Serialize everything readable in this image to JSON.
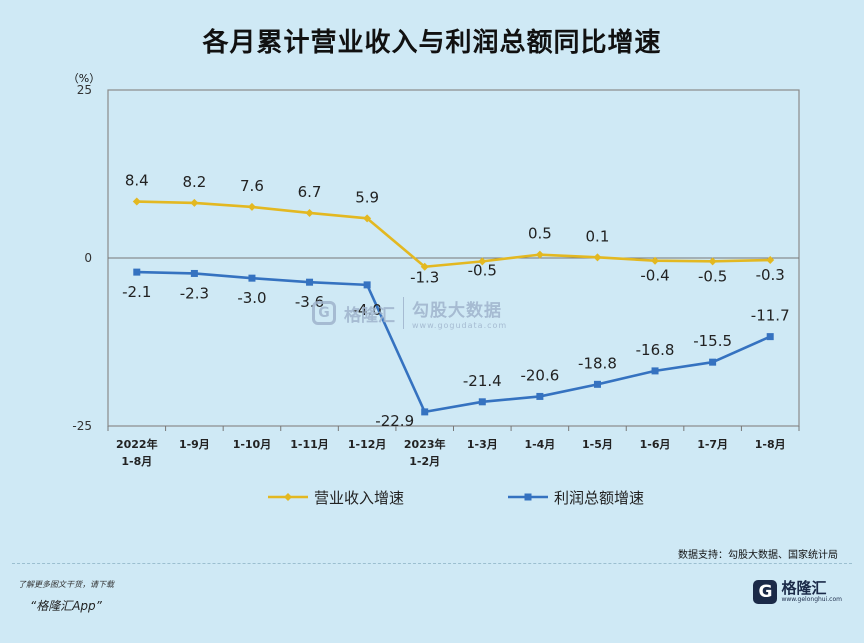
{
  "title": "各月累计营业收入与利润总额同比增速",
  "source": "数据支持：勾股大数据、国家统计局",
  "footer": {
    "note": "了解更多图文干货，请下载",
    "app": "“格隆汇App”",
    "logo_mark": "G",
    "logo_name": "格隆汇",
    "logo_url": "www.gelonghui.com"
  },
  "watermark": {
    "mark": "G",
    "name": "格隆汇",
    "cn": "勾股大数据",
    "url": "www.gogudata.com"
  },
  "colors": {
    "revenue": "#e3b821",
    "profit": "#3572c0",
    "background": "#cfe9f5",
    "plot_border": "#8a8a8a"
  },
  "chart_data": {
    "type": "line",
    "title": "各月累计营业收入与利润总额同比增速",
    "ylabel": "（%）",
    "ylim": [
      -25,
      25
    ],
    "yticks": [
      "25",
      "0",
      "-25"
    ],
    "categories": [
      [
        "2022年",
        "1-8月"
      ],
      [
        "1-9月"
      ],
      [
        "1-10月"
      ],
      [
        "1-11月"
      ],
      [
        "1-12月"
      ],
      [
        "2023年",
        "1-2月"
      ],
      [
        "1-3月"
      ],
      [
        "1-4月"
      ],
      [
        "1-5月"
      ],
      [
        "1-6月"
      ],
      [
        "1-7月"
      ],
      [
        "1-8月"
      ]
    ],
    "legend_position": "bottom",
    "series": [
      {
        "name": "营业收入增速",
        "color": "#e3b821",
        "values": [
          8.4,
          8.2,
          7.6,
          6.7,
          5.9,
          -1.3,
          -0.5,
          0.5,
          0.1,
          -0.4,
          -0.5,
          -0.3
        ],
        "labels": [
          "8.4",
          "8.2",
          "7.6",
          "6.7",
          "5.9",
          "-1.3",
          "-0.5",
          "0.5",
          "0.1",
          "-0.4",
          "-0.5",
          "-0.3"
        ]
      },
      {
        "name": "利润总额增速",
        "color": "#3572c0",
        "values": [
          -2.1,
          -2.3,
          -3.0,
          -3.6,
          -4.0,
          -22.9,
          -21.4,
          -20.6,
          -18.8,
          -16.8,
          -15.5,
          -11.7
        ],
        "labels": [
          "-2.1",
          "-2.3",
          "-3.0",
          "-3.6",
          "-4.0",
          "-22.9",
          "-21.4",
          "-20.6",
          "-18.8",
          "-16.8",
          "-15.5",
          "-11.7"
        ]
      }
    ]
  }
}
